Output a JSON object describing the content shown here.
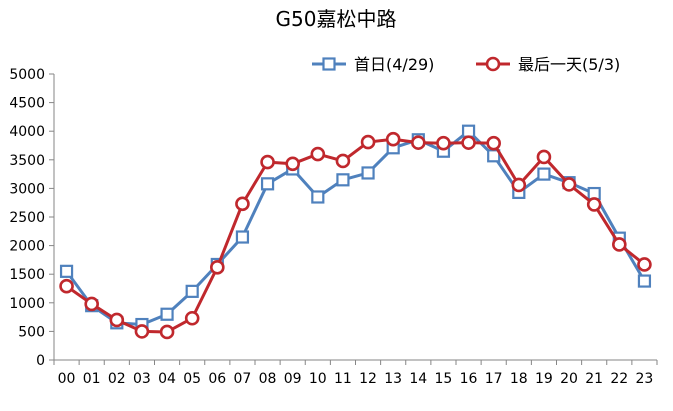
{
  "chart_data": {
    "type": "line",
    "title": "G50嘉松中路",
    "xlabel": "",
    "ylabel": "",
    "categories": [
      "00",
      "01",
      "02",
      "03",
      "04",
      "05",
      "06",
      "07",
      "08",
      "09",
      "10",
      "11",
      "12",
      "13",
      "14",
      "15",
      "16",
      "17",
      "18",
      "19",
      "20",
      "21",
      "22",
      "23"
    ],
    "ylim": [
      0,
      5000
    ],
    "yticks": [
      0,
      500,
      1000,
      1500,
      2000,
      2500,
      3000,
      3500,
      4000,
      4500,
      5000
    ],
    "grid": false,
    "legend_position": "top",
    "series": [
      {
        "name": "首日(4/29)",
        "color": "#4F81BD",
        "marker": "square",
        "values": [
          1550,
          950,
          650,
          620,
          800,
          1200,
          1670,
          2150,
          3080,
          3340,
          2850,
          3150,
          3270,
          3710,
          3850,
          3650,
          4000,
          3570,
          2930,
          3250,
          3100,
          2910,
          2130,
          1380
        ]
      },
      {
        "name": "最后一天(5/3)",
        "color": "#C0282D",
        "marker": "circle",
        "values": [
          1290,
          980,
          700,
          500,
          490,
          730,
          1620,
          2730,
          3460,
          3430,
          3600,
          3480,
          3810,
          3860,
          3800,
          3790,
          3800,
          3790,
          3060,
          3550,
          3070,
          2720,
          2020,
          1670
        ]
      }
    ]
  }
}
